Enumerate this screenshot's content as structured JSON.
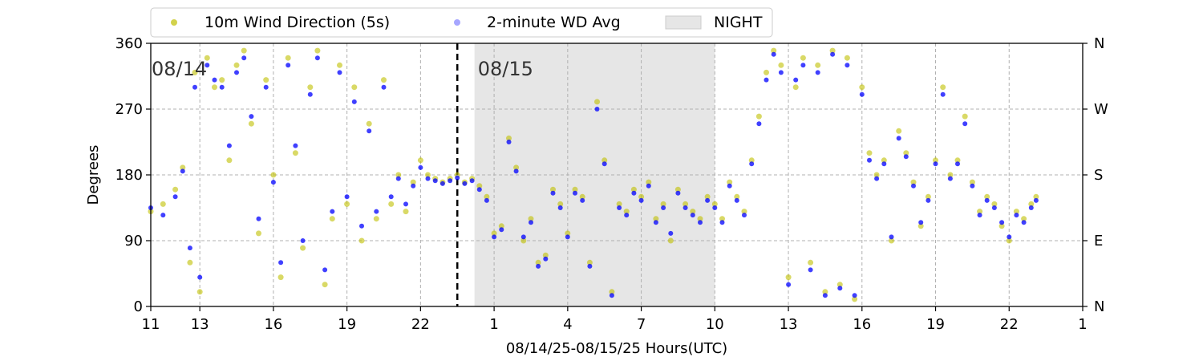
{
  "chart_data": {
    "type": "scatter",
    "xlabel": "08/14/25-08/15/25  Hours(UTC)",
    "ylabel": "Degrees",
    "x_range_hours": [
      11,
      49
    ],
    "ylim": [
      0,
      360
    ],
    "yticks": [
      0,
      90,
      180,
      270,
      360
    ],
    "right_tick_labels": [
      "N",
      "E",
      "S",
      "W",
      "N"
    ],
    "xticks": [
      11,
      13,
      16,
      19,
      22,
      25,
      28,
      31,
      34,
      37,
      40,
      43,
      46,
      49
    ],
    "xtick_labels": [
      "11",
      "13",
      "16",
      "19",
      "22",
      "1",
      "4",
      "7",
      "10",
      "13",
      "16",
      "19",
      "22",
      "1"
    ],
    "grid": true,
    "day_divider_hour": 23.5,
    "date_labels": [
      {
        "text": "08/14",
        "hour": 11
      },
      {
        "text": "08/15",
        "hour": 24.3
      }
    ],
    "night_band_hours": [
      24.2,
      34
    ],
    "legend": {
      "placement": "top-center",
      "entries": [
        {
          "label": "10m Wind Direction (5s)",
          "kind": "marker",
          "color": "#bfbf00"
        },
        {
          "label": "2-minute WD Avg",
          "kind": "marker",
          "color": "#0000ff"
        },
        {
          "label": "NIGHT",
          "kind": "patch",
          "color": "#e6e6e6"
        }
      ]
    },
    "series": [
      {
        "name": "10m Wind Direction (5s)",
        "color": "#bfbf00",
        "opacity": 0.6,
        "x": [
          11.0,
          11.5,
          12.0,
          12.3,
          12.6,
          12.8,
          13.0,
          13.3,
          13.6,
          13.9,
          14.2,
          14.5,
          14.8,
          15.1,
          15.4,
          15.7,
          16.0,
          16.3,
          16.6,
          16.9,
          17.2,
          17.5,
          17.8,
          18.1,
          18.4,
          18.7,
          19.0,
          19.3,
          19.6,
          19.9,
          20.2,
          20.5,
          20.8,
          21.1,
          21.4,
          21.7,
          22.0,
          22.3,
          22.6,
          22.9,
          23.2,
          23.5,
          23.8,
          24.1,
          24.4,
          24.7,
          25.0,
          25.3,
          25.6,
          25.9,
          26.2,
          26.5,
          26.8,
          27.1,
          27.4,
          27.7,
          28.0,
          28.3,
          28.6,
          28.9,
          29.2,
          29.5,
          29.8,
          30.1,
          30.4,
          30.7,
          31.0,
          31.3,
          31.6,
          31.9,
          32.2,
          32.5,
          32.8,
          33.1,
          33.4,
          33.7,
          34.0,
          34.3,
          34.6,
          34.9,
          35.2,
          35.5,
          35.8,
          36.1,
          36.4,
          36.7,
          37.0,
          37.3,
          37.6,
          37.9,
          38.2,
          38.5,
          38.8,
          39.1,
          39.4,
          39.7,
          40.0,
          40.3,
          40.6,
          40.9,
          41.2,
          41.5,
          41.8,
          42.1,
          42.4,
          42.7,
          43.0,
          43.3,
          43.6,
          43.9,
          44.2,
          44.5,
          44.8,
          45.1,
          45.4,
          45.7,
          46.0,
          46.3,
          46.6,
          46.9,
          47.1
        ],
        "y": [
          130,
          140,
          160,
          190,
          60,
          320,
          20,
          340,
          300,
          310,
          200,
          330,
          350,
          250,
          100,
          310,
          180,
          40,
          340,
          210,
          80,
          300,
          350,
          30,
          120,
          330,
          140,
          300,
          90,
          250,
          120,
          310,
          140,
          180,
          130,
          170,
          200,
          180,
          175,
          170,
          175,
          180,
          170,
          175,
          165,
          150,
          100,
          110,
          230,
          190,
          90,
          120,
          60,
          70,
          160,
          140,
          100,
          160,
          150,
          60,
          280,
          200,
          20,
          140,
          130,
          160,
          150,
          170,
          120,
          140,
          90,
          160,
          140,
          130,
          120,
          150,
          140,
          120,
          170,
          150,
          130,
          200,
          260,
          320,
          350,
          330,
          40,
          300,
          340,
          60,
          330,
          20,
          350,
          30,
          340,
          10,
          300,
          210,
          180,
          200,
          90,
          240,
          210,
          170,
          110,
          150,
          200,
          300,
          180,
          200,
          260,
          170,
          130,
          150,
          140,
          110,
          90,
          130,
          120,
          140,
          150
        ]
      },
      {
        "name": "2-minute WD Avg",
        "color": "#0000ff",
        "opacity": 0.75,
        "x": [
          11.0,
          11.5,
          12.0,
          12.3,
          12.6,
          12.8,
          13.0,
          13.3,
          13.6,
          13.9,
          14.2,
          14.5,
          14.8,
          15.1,
          15.4,
          15.7,
          16.0,
          16.3,
          16.6,
          16.9,
          17.2,
          17.5,
          17.8,
          18.1,
          18.4,
          18.7,
          19.0,
          19.3,
          19.6,
          19.9,
          20.2,
          20.5,
          20.8,
          21.1,
          21.4,
          21.7,
          22.0,
          22.3,
          22.6,
          22.9,
          23.2,
          23.5,
          23.8,
          24.1,
          24.4,
          24.7,
          25.0,
          25.3,
          25.6,
          25.9,
          26.2,
          26.5,
          26.8,
          27.1,
          27.4,
          27.7,
          28.0,
          28.3,
          28.6,
          28.9,
          29.2,
          29.5,
          29.8,
          30.1,
          30.4,
          30.7,
          31.0,
          31.3,
          31.6,
          31.9,
          32.2,
          32.5,
          32.8,
          33.1,
          33.4,
          33.7,
          34.0,
          34.3,
          34.6,
          34.9,
          35.2,
          35.5,
          35.8,
          36.1,
          36.4,
          36.7,
          37.0,
          37.3,
          37.6,
          37.9,
          38.2,
          38.5,
          38.8,
          39.1,
          39.4,
          39.7,
          40.0,
          40.3,
          40.6,
          40.9,
          41.2,
          41.5,
          41.8,
          42.1,
          42.4,
          42.7,
          43.0,
          43.3,
          43.6,
          43.9,
          44.2,
          44.5,
          44.8,
          45.1,
          45.4,
          45.7,
          46.0,
          46.3,
          46.6,
          46.9,
          47.1
        ],
        "y": [
          135,
          125,
          150,
          185,
          80,
          300,
          40,
          330,
          310,
          300,
          220,
          320,
          340,
          260,
          120,
          300,
          170,
          60,
          330,
          220,
          90,
          290,
          340,
          50,
          130,
          320,
          150,
          280,
          110,
          240,
          130,
          300,
          150,
          175,
          140,
          165,
          190,
          175,
          172,
          168,
          172,
          176,
          168,
          172,
          160,
          145,
          95,
          105,
          225,
          185,
          95,
          115,
          55,
          65,
          155,
          135,
          95,
          155,
          145,
          55,
          270,
          195,
          15,
          135,
          125,
          155,
          145,
          165,
          115,
          135,
          100,
          155,
          135,
          125,
          115,
          145,
          135,
          115,
          165,
          145,
          125,
          195,
          250,
          310,
          345,
          320,
          30,
          310,
          330,
          50,
          320,
          15,
          345,
          25,
          330,
          15,
          290,
          200,
          175,
          195,
          95,
          230,
          205,
          165,
          115,
          145,
          195,
          290,
          175,
          195,
          250,
          165,
          125,
          145,
          135,
          115,
          95,
          125,
          115,
          135,
          145
        ]
      }
    ]
  }
}
